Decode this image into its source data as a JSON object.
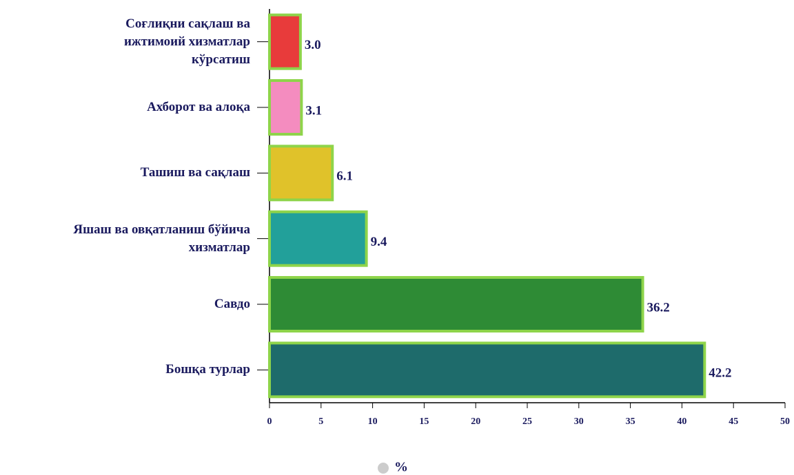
{
  "chart_data": {
    "type": "hbar",
    "categories": [
      "Соғлиқни сақлаш ва\nижтимоий хизматлар\nкўрсатиш",
      "Ахборот ва алоқа",
      "Ташиш ва сақлаш",
      "Яшаш ва овқатланиш бўйича\nхизматлар",
      "Савдо",
      "Бошқа турлар"
    ],
    "series": [
      {
        "name": "%",
        "color": "#cccccc",
        "colors": [
          "#e83b3b",
          "#f48cbf",
          "#e0c22a",
          "#22a09a",
          "#2e8b35",
          "#1e6b6b"
        ],
        "values": [
          3.0,
          3.1,
          6.1,
          9.4,
          36.2,
          42.2
        ],
        "value_labels": [
          "3.0",
          "3.1",
          "6.1",
          "9.4",
          "36.2",
          "42.2"
        ]
      }
    ],
    "bar_border": "#8ed44a",
    "xlim": [
      0,
      50
    ],
    "xticks": [
      0,
      5,
      10,
      15,
      20,
      25,
      30,
      35,
      40,
      45,
      50
    ],
    "legend": "bottom"
  }
}
